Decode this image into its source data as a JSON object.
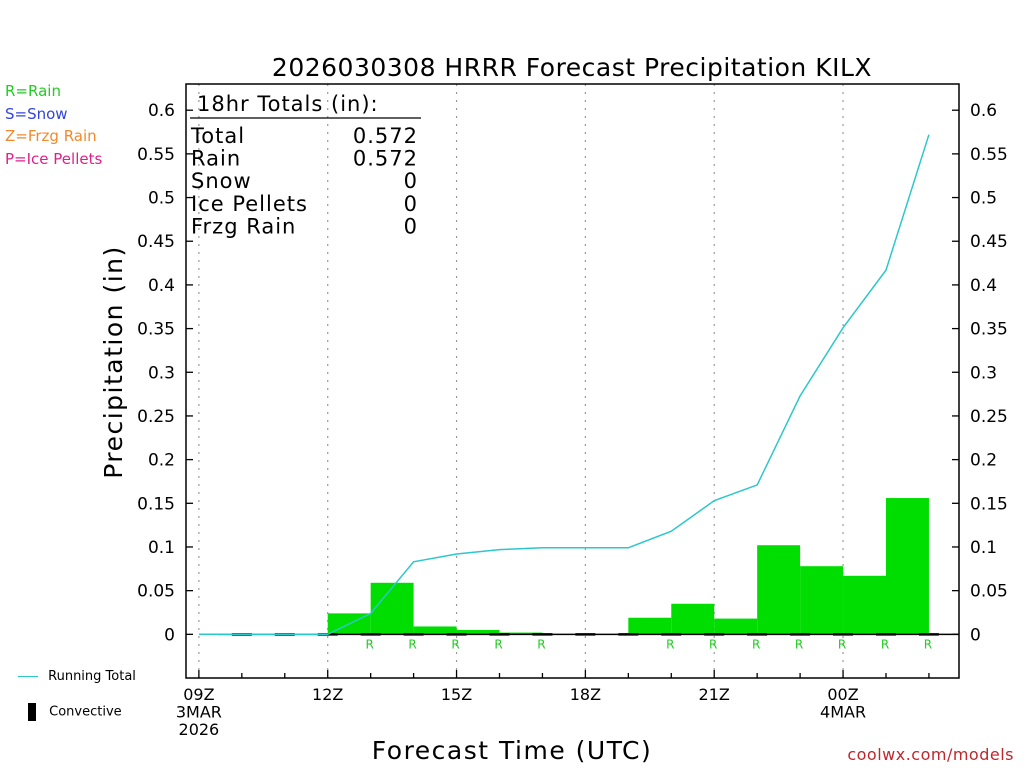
{
  "colors": {
    "rain": "#22cc22",
    "snow": "#3344dd",
    "frzg_rain": "#f08a2c",
    "ice_pellets": "#e0208a",
    "bars": "#00dd00",
    "running_total": "#2cc7cc",
    "credit": "#c0262c"
  },
  "legend": {
    "rain": "R=Rain",
    "snow": "S=Snow",
    "frzg_rain": "Z=Frzg Rain",
    "ice_pellets": "P=Ice Pellets",
    "running_total": "Running Total",
    "convective": "Convective"
  },
  "totals": {
    "header": "18hr Totals (in):",
    "rows": [
      {
        "label": "Total",
        "value": "0.572"
      },
      {
        "label": "Rain",
        "value": "0.572"
      },
      {
        "label": "Snow",
        "value": "0"
      },
      {
        "label": "Ice Pellets",
        "value": "0"
      },
      {
        "label": "Frzg Rain",
        "value": "0"
      }
    ]
  },
  "credit": "coolwx.com/models",
  "chart_data": {
    "type": "bar",
    "title": "2026030308 HRRR Forecast Precipitation KILX",
    "xlabel": "Forecast Time (UTC)",
    "ylabel": "Precipitation (in)",
    "ylim": [
      -0.05,
      0.63
    ],
    "y_ticks": [
      0,
      0.05,
      0.1,
      0.15,
      0.2,
      0.25,
      0.3,
      0.35,
      0.4,
      0.45,
      0.5,
      0.55,
      0.6
    ],
    "xlim": [
      8.7,
      26.7
    ],
    "x_ticks": [
      {
        "hour": 9,
        "lines": [
          "09Z",
          "3MAR",
          "2026"
        ]
      },
      {
        "hour": 12,
        "lines": [
          "12Z"
        ]
      },
      {
        "hour": 15,
        "lines": [
          "15Z"
        ]
      },
      {
        "hour": 18,
        "lines": [
          "18Z"
        ]
      },
      {
        "hour": 21,
        "lines": [
          "21Z"
        ]
      },
      {
        "hour": 24,
        "lines": [
          "00Z",
          "4MAR"
        ]
      }
    ],
    "grid": "vertical dotted at tick hours",
    "series": [
      {
        "name": "Hourly precipitation",
        "kind": "bar",
        "hours": [
          13,
          14,
          15,
          16,
          17,
          18,
          19,
          20,
          21,
          22,
          23,
          24,
          25,
          26
        ],
        "values": [
          0.024,
          0.059,
          0.009,
          0.005,
          0.002,
          0,
          0,
          0.019,
          0.035,
          0.018,
          0.102,
          0.078,
          0.067,
          0.156
        ],
        "ptype": [
          "R",
          "R",
          "R",
          "R",
          "R",
          "",
          "",
          "R",
          "R",
          "R",
          "R",
          "R",
          "R",
          "R"
        ]
      },
      {
        "name": "Running Total",
        "kind": "line",
        "hours": [
          9,
          10,
          11,
          12,
          13,
          14,
          15,
          16,
          17,
          18,
          19,
          20,
          21,
          22,
          23,
          24,
          25,
          26
        ],
        "values": [
          0,
          0,
          0,
          0,
          0.024,
          0.083,
          0.092,
          0.097,
          0.099,
          0.099,
          0.099,
          0.118,
          0.153,
          0.171,
          0.273,
          0.351,
          0.417,
          0.572
        ]
      }
    ]
  }
}
